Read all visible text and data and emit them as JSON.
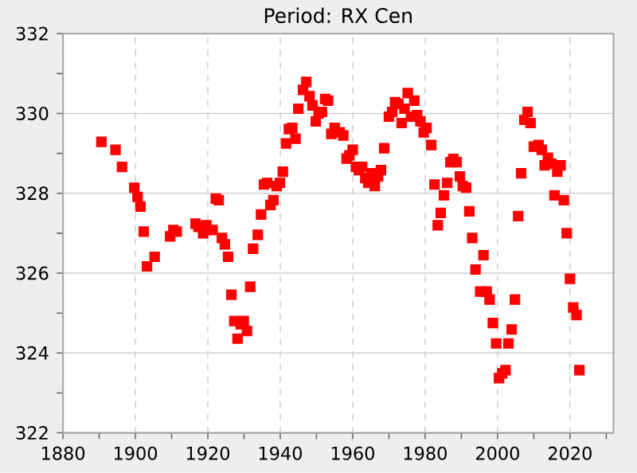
{
  "chart_data": {
    "type": "scatter",
    "title": "Period: RX Cen",
    "marker": "square",
    "grid": true,
    "xlim": [
      1880,
      2032
    ],
    "ylim": [
      322,
      332
    ],
    "xticks": [
      1880,
      {
        "value": 1890,
        "label": null
      },
      1900,
      {
        "value": 1910,
        "label": null
      },
      1920,
      {
        "value": 1930,
        "label": null
      },
      1940,
      {
        "value": 1950,
        "label": null
      },
      1960,
      {
        "value": 1970,
        "label": null
      },
      1980,
      {
        "value": 1990,
        "label": null
      },
      2000,
      {
        "value": 2010,
        "label": null
      },
      2020,
      {
        "value": 2030,
        "label": null
      }
    ],
    "yticks": [
      322,
      {
        "value": 323,
        "label": null
      },
      324,
      {
        "value": 325,
        "label": null
      },
      326,
      {
        "value": 327,
        "label": null
      },
      328,
      {
        "value": 329,
        "label": null
      },
      330,
      {
        "value": 331,
        "label": null
      },
      332
    ],
    "series": [
      {
        "color": "#ff0000",
        "x": [
          1890.6,
          1894.5,
          1896.3,
          1899.7,
          1900.6,
          1901.4,
          1902.3,
          1903.2,
          1905.3,
          1909.6,
          1910.5,
          1911.4,
          1916.6,
          1917.4,
          1918.7,
          1919.6,
          1921.3,
          1922.2,
          1923.0,
          1923.9,
          1924.7,
          1925.6,
          1926.5,
          1927.3,
          1928.2,
          1929.1,
          1929.9,
          1930.8,
          1931.7,
          1932.5,
          1933.8,
          1934.7,
          1935.5,
          1936.4,
          1937.3,
          1938.1,
          1939.0,
          1939.9,
          1940.7,
          1941.6,
          1942.4,
          1943.3,
          1944.2,
          1945.0,
          1946.3,
          1947.2,
          1948.1,
          1948.9,
          1949.8,
          1950.6,
          1951.5,
          1952.4,
          1953.2,
          1954.1,
          1955.0,
          1956.4,
          1957.4,
          1958.3,
          1959.1,
          1960.0,
          1960.9,
          1961.7,
          1962.6,
          1963.5,
          1964.3,
          1965.2,
          1966.1,
          1967.0,
          1967.8,
          1968.7,
          1970.0,
          1970.9,
          1971.7,
          1972.6,
          1973.5,
          1974.3,
          1975.2,
          1976.1,
          1977.0,
          1977.8,
          1978.7,
          1979.6,
          1980.4,
          1981.7,
          1982.6,
          1983.5,
          1984.3,
          1985.2,
          1986.1,
          1987.0,
          1987.8,
          1988.7,
          1989.6,
          1990.4,
          1991.3,
          1992.2,
          1993.0,
          1993.9,
          1995.2,
          1996.1,
          1997.0,
          1997.8,
          1998.7,
          1999.6,
          2000.4,
          2001.3,
          2002.2,
          2003.0,
          2003.9,
          2004.8,
          2005.7,
          2006.5,
          2007.4,
          2008.3,
          2009.1,
          2010.0,
          2011.3,
          2012.2,
          2013.0,
          2013.9,
          2014.8,
          2015.7,
          2016.5,
          2017.4,
          2018.3,
          2019.1,
          2020.0,
          2020.9,
          2021.8,
          2022.6
        ],
        "values": [
          329.29,
          329.09,
          328.66,
          328.14,
          327.91,
          327.67,
          327.04,
          326.17,
          326.41,
          326.92,
          327.08,
          327.04,
          327.24,
          327.16,
          327.0,
          327.2,
          327.08,
          327.87,
          327.83,
          326.88,
          326.72,
          326.41,
          325.46,
          324.8,
          324.36,
          324.72,
          324.8,
          324.55,
          325.66,
          326.61,
          326.96,
          327.47,
          328.22,
          328.26,
          327.71,
          327.83,
          328.18,
          328.26,
          328.54,
          329.25,
          329.61,
          329.64,
          329.37,
          330.12,
          330.59,
          330.79,
          330.43,
          330.2,
          329.8,
          330.0,
          330.04,
          330.36,
          330.32,
          329.49,
          329.64,
          329.53,
          329.45,
          328.87,
          328.95,
          329.09,
          328.66,
          328.58,
          328.66,
          328.38,
          328.26,
          328.5,
          328.18,
          328.42,
          328.58,
          329.13,
          329.92,
          330.04,
          330.28,
          330.24,
          329.76,
          330.12,
          330.51,
          329.92,
          330.32,
          329.96,
          329.8,
          329.53,
          329.64,
          329.21,
          328.22,
          327.2,
          327.51,
          327.95,
          328.26,
          328.78,
          328.86,
          328.78,
          328.42,
          328.18,
          328.14,
          327.55,
          326.88,
          326.09,
          325.54,
          326.45,
          325.54,
          325.34,
          324.75,
          324.24,
          323.37,
          323.49,
          323.57,
          324.24,
          324.59,
          325.34,
          327.43,
          328.5,
          329.84,
          330.04,
          329.76,
          329.17,
          329.21,
          329.09,
          328.7,
          328.89,
          328.74,
          327.95,
          328.54,
          328.7,
          327.83,
          327.0,
          325.86,
          325.14,
          324.95,
          323.57
        ]
      }
    ]
  }
}
